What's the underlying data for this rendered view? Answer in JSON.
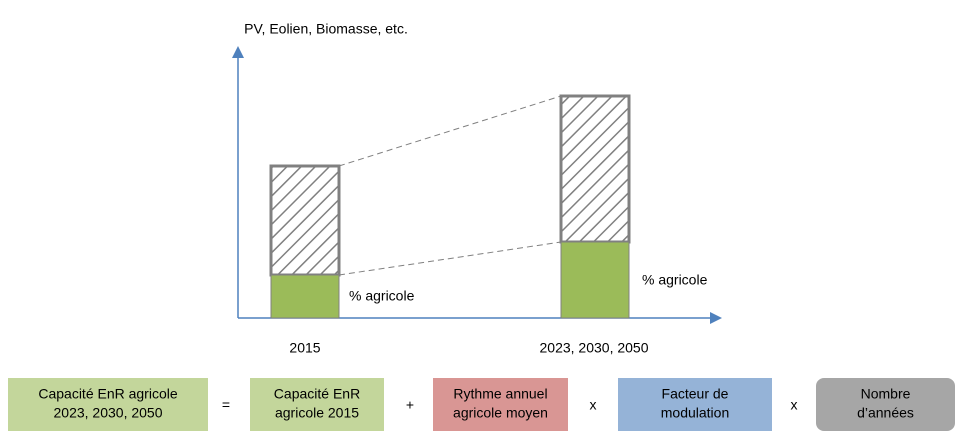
{
  "axis_title": "PV, Eolien, Biomasse, etc.",
  "bars": [
    {
      "label": "2015",
      "share_label": "% agricole"
    },
    {
      "label": "2023, 2030, 2050",
      "share_label": "% agricole"
    }
  ],
  "formula": {
    "terms": [
      {
        "lines": [
          "Capacité EnR agricole",
          "2023, 2030, 2050"
        ]
      },
      {
        "lines": [
          "Capacité EnR",
          "agricole 2015"
        ]
      },
      {
        "lines": [
          "Rythme annuel",
          "agricole moyen"
        ]
      },
      {
        "lines": [
          "Facteur de",
          "modulation"
        ]
      },
      {
        "lines": [
          "Nombre",
          "d’années"
        ]
      }
    ],
    "operators": [
      "=",
      "+",
      "x",
      "x"
    ]
  }
}
